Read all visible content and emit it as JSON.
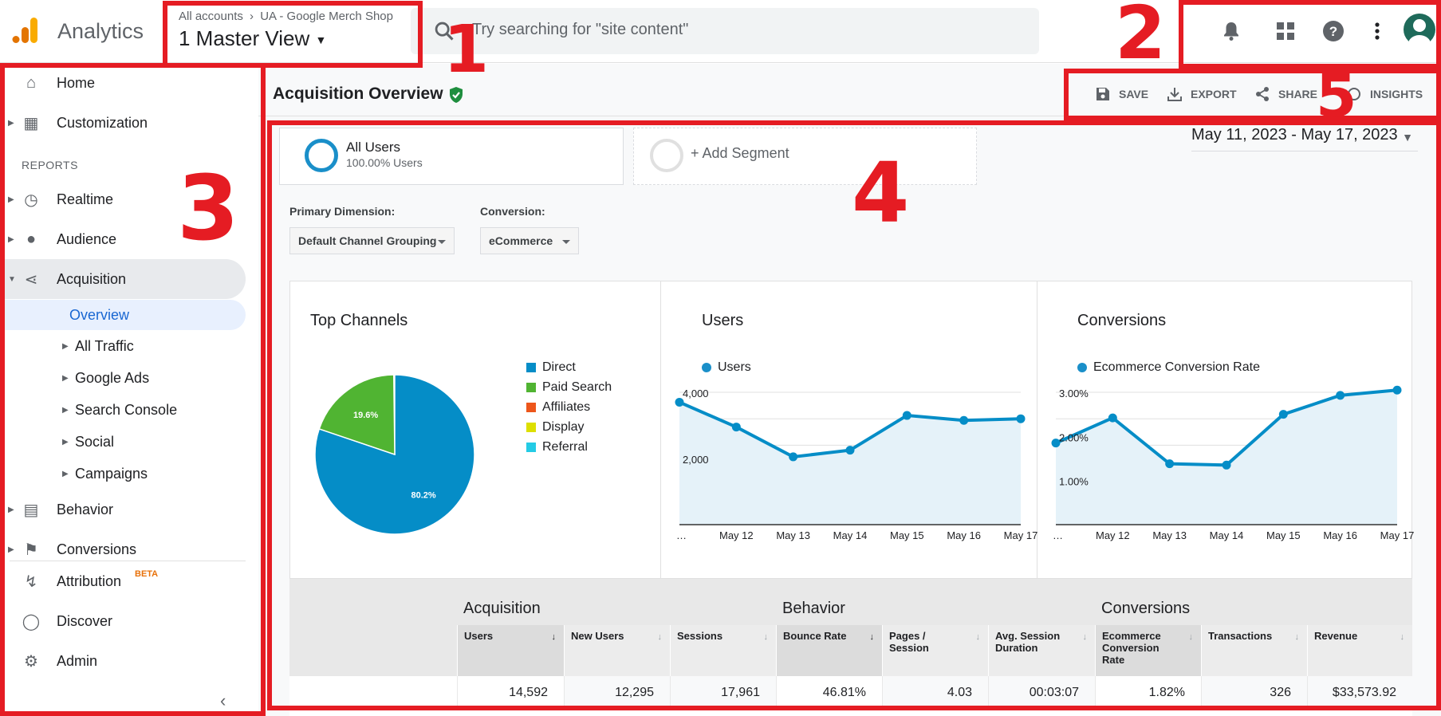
{
  "app": {
    "title": "Analytics"
  },
  "account": {
    "breadcrumb_root": "All accounts",
    "breadcrumb_property": "UA - Google Merch Shop",
    "view": "1 Master View"
  },
  "search": {
    "placeholder": "Try searching for \"site content\""
  },
  "topbar_icons": [
    "bell-icon",
    "apps-grid-icon",
    "help-icon",
    "more-vert-icon",
    "avatar"
  ],
  "sidebar": {
    "home": "Home",
    "customization": "Customization",
    "reports_header": "REPORTS",
    "realtime": "Realtime",
    "audience": "Audience",
    "acquisition": "Acquisition",
    "overview": "Overview",
    "all_traffic": "All Traffic",
    "google_ads": "Google Ads",
    "search_console": "Search Console",
    "social": "Social",
    "campaigns": "Campaigns",
    "behavior": "Behavior",
    "conversions": "Conversions",
    "attribution": "Attribution",
    "attribution_badge": "BETA",
    "discover": "Discover",
    "admin": "Admin"
  },
  "page": {
    "title": "Acquisition Overview"
  },
  "actions": {
    "save": "SAVE",
    "export": "EXPORT",
    "share": "SHARE",
    "insights": "INSIGHTS"
  },
  "segments": {
    "all_users": "All Users",
    "all_users_sub": "100.00% Users",
    "add": "+ Add Segment"
  },
  "date_range": "May 11, 2023 - May 17, 2023",
  "controls": {
    "primary_dimension_label": "Primary Dimension:",
    "primary_dimension_value": "Default Channel Grouping",
    "conversion_label": "Conversion:",
    "conversion_value": "eCommerce"
  },
  "annotations": {
    "n1": "1",
    "n2": "2",
    "n3": "3",
    "n4": "4",
    "n5": "5",
    "color": "#e51c23"
  },
  "colors": {
    "accent": "#1a8fc9",
    "paid_search": "#50b432",
    "affiliates": "#ed561b",
    "display": "#dddf00",
    "referral": "#24cbe5"
  },
  "chart_data": [
    {
      "type": "pie",
      "title": "Top Channels",
      "legend": [
        "Direct",
        "Paid Search",
        "Affiliates",
        "Display",
        "Referral"
      ],
      "slices": [
        {
          "label": "Direct",
          "value": 80.2,
          "text": "80.2%"
        },
        {
          "label": "Paid Search",
          "value": 19.6,
          "text": "19.6%"
        }
      ]
    },
    {
      "type": "area",
      "title": "Users",
      "series": [
        {
          "name": "Users",
          "values": [
            3700,
            2950,
            2050,
            2250,
            3300,
            3150,
            3200
          ]
        }
      ],
      "x": [
        "…",
        "May 12",
        "May 13",
        "May 14",
        "May 15",
        "May 16",
        "May 17"
      ],
      "y_ticks": [
        "4,000",
        "2,000"
      ],
      "ylim": [
        0,
        4000
      ]
    },
    {
      "type": "area",
      "title": "Conversions",
      "series": [
        {
          "name": "Ecommerce Conversion Rate",
          "values": [
            1.85,
            2.42,
            1.38,
            1.35,
            2.5,
            2.93,
            3.05
          ]
        }
      ],
      "x": [
        "…",
        "May 12",
        "May 13",
        "May 14",
        "May 15",
        "May 16",
        "May 17"
      ],
      "y_ticks": [
        "3.00%",
        "2.00%",
        "1.00%"
      ],
      "ylim": [
        0,
        3.0
      ]
    }
  ],
  "table": {
    "groups": [
      "Acquisition",
      "Behavior",
      "Conversions"
    ],
    "columns": [
      "Users",
      "New Users",
      "Sessions",
      "Bounce Rate",
      "Pages / Session",
      "Avg. Session Duration",
      "Ecommerce Conversion Rate",
      "Transactions",
      "Revenue"
    ],
    "values": [
      "14,592",
      "12,295",
      "17,961",
      "46.81%",
      "4.03",
      "00:03:07",
      "1.82%",
      "326",
      "$33,573.92"
    ]
  }
}
